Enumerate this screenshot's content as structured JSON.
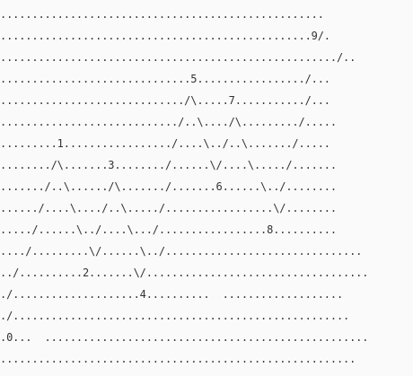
{
  "ascii_art": {
    "lines": [
      "...................................................",
      ".................................................9/.",
      "...................................................../..",
      "..............................5................./...",
      "............................./\\.....7.........../...",
      "............................/..\\..../\\........./.....",
      ".........1................./....\\../..\\......./.....",
      "......../\\.......3......../......\\/....\\...../.......",
      "......./..\\....../\\......./.......6......\\../........",
      "....../....\\..../..\\...../.................\\/........",
      "...../......\\../....\\.../.................8..........",
      "..../.........\\/......\\../...............................",
      "../..........2.......\\/...................................",
      "./....................4..........  ...................",
      "./.....................................................",
      ".0...  ...................................................",
      "........................................................"
    ]
  }
}
